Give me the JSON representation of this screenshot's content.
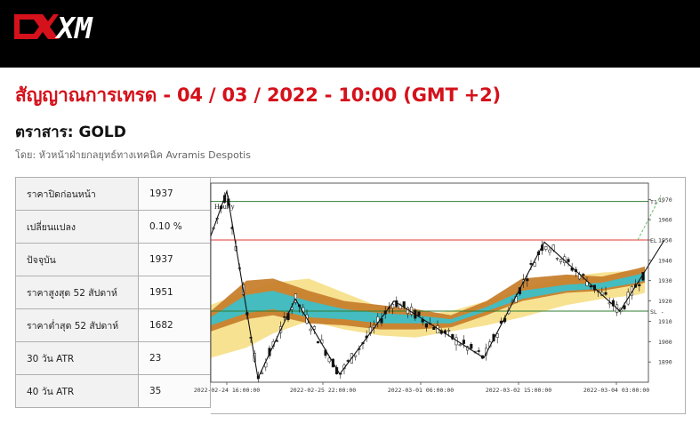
{
  "header": {
    "logo_text": "XM"
  },
  "page": {
    "title": "สัญญาณการเทรด - 04 / 03 / 2022 - 10:00 (GMT +2)",
    "instrument": "ตราสาร: GOLD",
    "byline": "โดย: หัวหน้าฝ่ายกลยุทธ์ทางเทคนิค Avramis Despotis"
  },
  "stats": [
    {
      "label": "ราคาปิดก่อนหน้า",
      "value": "1937"
    },
    {
      "label": "เปลี่ยนแปลง",
      "value": "0.10 %"
    },
    {
      "label": "ปัจจุบัน",
      "value": "1937"
    },
    {
      "label": "ราคาสูงสุด 52 สัปดาห์",
      "value": "1951"
    },
    {
      "label": "ราคาต่ำสุด 52 สัปดาห์",
      "value": "1682"
    },
    {
      "label": "30 วัน ATR",
      "value": "23"
    },
    {
      "label": "40 วัน ATR",
      "value": "35"
    }
  ],
  "chart_data": {
    "type": "line",
    "title": "Hourly",
    "ylim": [
      1880,
      1978
    ],
    "y_ticks": [
      "1970",
      "1960",
      "1950",
      "1940",
      "1930",
      "1920",
      "1910",
      "1900",
      "1890"
    ],
    "x_ticks": [
      "2022-02-24 16:00:00",
      "2022-02-25 22:00:00",
      "2022-03-01 06:00:00",
      "2022-03-02 15:00:00",
      "2022-03-04 03:00:00"
    ],
    "levels": [
      {
        "label": "T1",
        "value": 1969,
        "color": "#2e7d32"
      },
      {
        "label": "EL",
        "value": 1950,
        "color": "#e53935"
      },
      {
        "label": "SL",
        "value": 1915,
        "color": "#2e7d32"
      }
    ],
    "zigzag": {
      "x": [
        0,
        18,
        53,
        95,
        145,
        206,
        307,
        375,
        460,
        510
      ],
      "values": [
        1952,
        1974,
        1882,
        1921,
        1884,
        1920,
        1892,
        1949,
        1915,
        1950
      ]
    },
    "colors": {
      "band_orange": "#c7802e",
      "band_cyan": "#3cbfc8",
      "band_yellow": "#f7e08c",
      "zigzag": "#111111"
    }
  }
}
